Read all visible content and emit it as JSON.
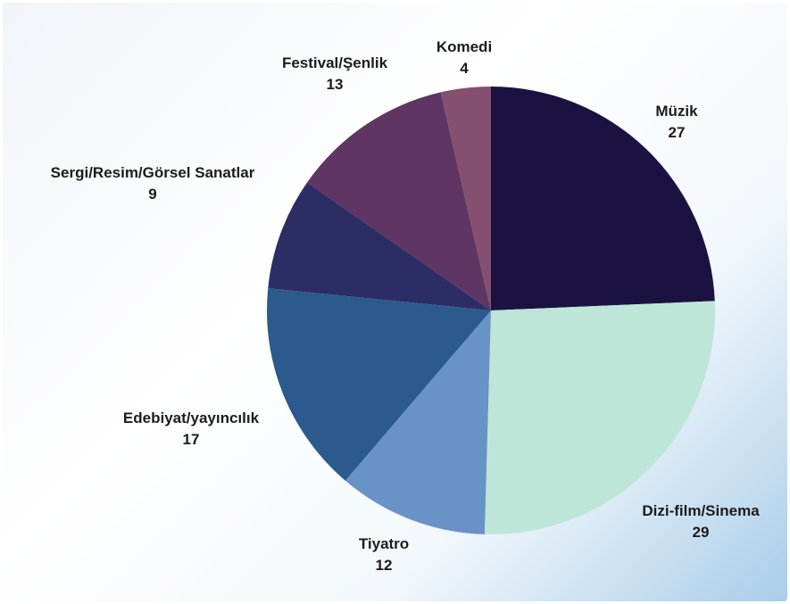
{
  "chart_data": {
    "type": "pie",
    "title": "",
    "start_angle_deg": 0,
    "direction": "clockwise",
    "slices": [
      {
        "label": "Müzik",
        "value": 27,
        "color": "#1c1242"
      },
      {
        "label": "Dizi-film/Sinema",
        "value": 29,
        "color": "#bde6d8"
      },
      {
        "label": "Tiyatro",
        "value": 12,
        "color": "#6993c6"
      },
      {
        "label": "Edebiyat/yayıncılık",
        "value": 17,
        "color": "#2b5a8e"
      },
      {
        "label": "Sergi/Resim/Görsel Sanatlar",
        "value": 9,
        "color": "#2d2d66"
      },
      {
        "label": "Festival/Şenlik",
        "value": 13,
        "color": "#5e3563"
      },
      {
        "label": "Komedi",
        "value": 4,
        "color": "#85506f"
      }
    ]
  }
}
